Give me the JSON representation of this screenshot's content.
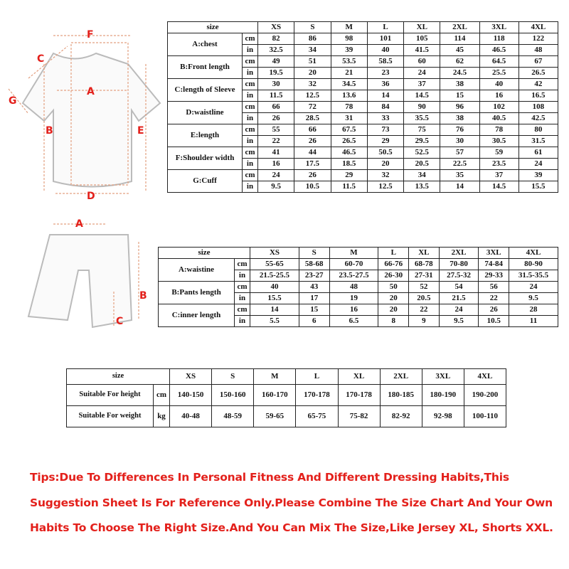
{
  "sizes": [
    "XS",
    "S",
    "M",
    "L",
    "XL",
    "2XL",
    "3XL",
    "4XL"
  ],
  "jersey_table": {
    "header": "size",
    "rows": [
      {
        "label": "A:chest",
        "cm": [
          "82",
          "86",
          "98",
          "101",
          "105",
          "114",
          "118",
          "122"
        ],
        "in": [
          "32.5",
          "34",
          "39",
          "40",
          "41.5",
          "45",
          "46.5",
          "48"
        ]
      },
      {
        "label": "B:Front length",
        "cm": [
          "49",
          "51",
          "53.5",
          "58.5",
          "60",
          "62",
          "64.5",
          "67"
        ],
        "in": [
          "19.5",
          "20",
          "21",
          "23",
          "24",
          "24.5",
          "25.5",
          "26.5"
        ]
      },
      {
        "label": "C:length of Sleeve",
        "cm": [
          "30",
          "32",
          "34.5",
          "36",
          "37",
          "38",
          "40",
          "42"
        ],
        "in": [
          "11.5",
          "12.5",
          "13.6",
          "14",
          "14.5",
          "15",
          "16",
          "16.5"
        ]
      },
      {
        "label": "D:waistline",
        "cm": [
          "66",
          "72",
          "78",
          "84",
          "90",
          "96",
          "102",
          "108"
        ],
        "in": [
          "26",
          "28.5",
          "31",
          "33",
          "35.5",
          "38",
          "40.5",
          "42.5"
        ]
      },
      {
        "label": "E:length",
        "cm": [
          "55",
          "66",
          "67.5",
          "73",
          "75",
          "76",
          "78",
          "80"
        ],
        "in": [
          "22",
          "26",
          "26.5",
          "29",
          "29.5",
          "30",
          "30.5",
          "31.5"
        ]
      },
      {
        "label": "F:Shoulder width",
        "cm": [
          "41",
          "44",
          "46.5",
          "50.5",
          "52.5",
          "57",
          "59",
          "61"
        ],
        "in": [
          "16",
          "17.5",
          "18.5",
          "20",
          "20.5",
          "22.5",
          "23.5",
          "24"
        ]
      },
      {
        "label": "G:Cuff",
        "cm": [
          "24",
          "26",
          "29",
          "32",
          "34",
          "35",
          "37",
          "39"
        ],
        "in": [
          "9.5",
          "10.5",
          "11.5",
          "12.5",
          "13.5",
          "14",
          "14.5",
          "15.5"
        ]
      }
    ]
  },
  "shorts_table": {
    "header": "size",
    "rows": [
      {
        "label": "A:waistine",
        "cm": [
          "55-65",
          "58-68",
          "60-70",
          "66-76",
          "68-78",
          "70-80",
          "74-84",
          "80-90"
        ],
        "in": [
          "21.5-25.5",
          "23-27",
          "23.5-27.5",
          "26-30",
          "27-31",
          "27.5-32",
          "29-33",
          "31.5-35.5"
        ]
      },
      {
        "label": "B:Pants length",
        "cm": [
          "40",
          "43",
          "48",
          "50",
          "52",
          "54",
          "56",
          "24"
        ],
        "in": [
          "15.5",
          "17",
          "19",
          "20",
          "20.5",
          "21.5",
          "22",
          "9.5"
        ]
      },
      {
        "label": "C:inner length",
        "cm": [
          "14",
          "15",
          "16",
          "20",
          "22",
          "24",
          "26",
          "28"
        ],
        "in": [
          "5.5",
          "6",
          "6.5",
          "8",
          "9",
          "9.5",
          "10.5",
          "11"
        ]
      }
    ]
  },
  "suitable_table": {
    "header": "size",
    "rows": [
      {
        "label": "Suitable For height",
        "unit": "cm",
        "values": [
          "140-150",
          "150-160",
          "160-170",
          "170-178",
          "170-178",
          "180-185",
          "180-190",
          "190-200"
        ]
      },
      {
        "label": "Suitable For weight",
        "unit": "kg",
        "values": [
          "40-48",
          "48-59",
          "59-65",
          "65-75",
          "75-82",
          "82-92",
          "92-98",
          "100-110"
        ]
      }
    ]
  },
  "units": {
    "cm": "cm",
    "in": "in"
  },
  "jersey_diagram": {
    "labels": [
      "F",
      "C",
      "G",
      "A",
      "B",
      "E",
      "D"
    ]
  },
  "shorts_diagram": {
    "labels": [
      "A",
      "B",
      "C"
    ]
  },
  "tips": "Tips:Due To Differences In Personal Fitness And Different Dressing Habits,This Suggestion Sheet Is For Reference Only.Please Combine The Size Chart And Your Own Habits To Choose The Right Size.And You Can Mix The Size,Like Jersey XL, Shorts XXL.",
  "colors": {
    "accent": "#e3201b",
    "border": "#222222",
    "garment_outline": "#bbbbbb"
  }
}
